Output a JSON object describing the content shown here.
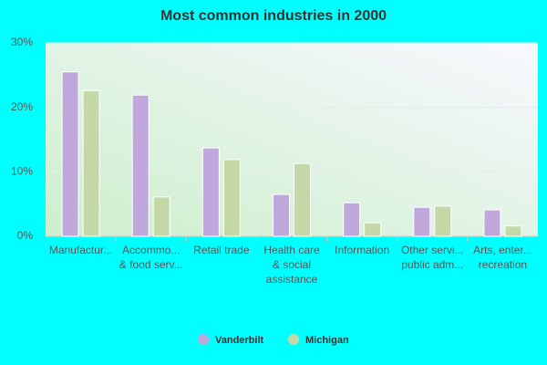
{
  "chart_data": {
    "type": "bar",
    "title": "Most common industries in 2000",
    "categories": [
      [
        "Manufactur..."
      ],
      [
        "Accommo...",
        "& food serv..."
      ],
      [
        "Retail trade"
      ],
      [
        "Health care",
        "& social",
        "assistance"
      ],
      [
        "Information"
      ],
      [
        "Other servi...",
        "public adm..."
      ],
      [
        "Arts, enter...",
        "recreation"
      ]
    ],
    "series": [
      {
        "name": "Vanderbilt",
        "color": "#c0a8dc",
        "values": [
          25.5,
          21.9,
          13.7,
          6.5,
          5.2,
          4.5,
          4.1
        ]
      },
      {
        "name": "Michigan",
        "color": "#c5d9a8",
        "values": [
          22.6,
          6.1,
          11.9,
          11.3,
          2.1,
          4.7,
          1.6
        ]
      }
    ],
    "ylim": [
      0,
      30
    ],
    "yticks": [
      {
        "value": 0,
        "label": "0%"
      },
      {
        "value": 10,
        "label": "10%"
      },
      {
        "value": 20,
        "label": "20%"
      },
      {
        "value": 30,
        "label": "30%"
      }
    ],
    "grid": true
  }
}
